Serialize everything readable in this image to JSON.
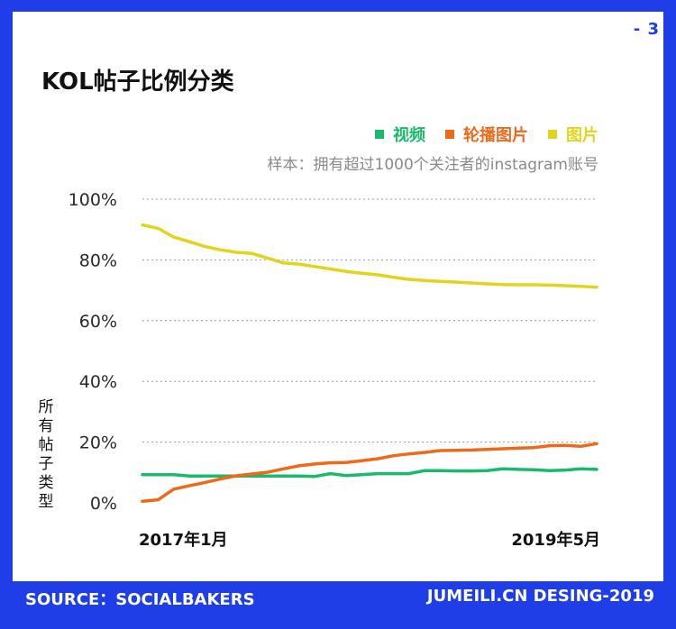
{
  "page_number": "- 3",
  "footer": {
    "source": "SOURCE：SOCIALBAKERS",
    "credit": "JUMEILI.CN DESING-2019"
  },
  "colors": {
    "frame": "#1f3ee8",
    "video": "#1aba6c",
    "carousel": "#ee6a1a",
    "image": "#e2d41c",
    "grid": "#9a9a9a"
  },
  "chart_data": {
    "type": "line",
    "title": "KOL帖子比例分类",
    "subtitle": "样本：拥有超过1000个关注者的instagram账号",
    "ylabel": "所有帖子类型",
    "xlabel": "",
    "x_tick_labels": [
      "2017年1月",
      "2019年5月"
    ],
    "y_ticks": [
      "0%",
      "20%",
      "40%",
      "60%",
      "80%",
      "100%"
    ],
    "ylim": [
      0,
      100
    ],
    "grid": true,
    "legend_position": "top-right",
    "x": [
      0,
      1,
      2,
      3,
      4,
      5,
      6,
      7,
      8,
      9,
      10,
      11,
      12,
      13,
      14,
      15,
      16,
      17,
      18,
      19,
      20,
      21,
      22,
      23,
      24,
      25,
      26,
      27,
      28,
      29
    ],
    "series": [
      {
        "name": "视频",
        "color_key": "video",
        "values": [
          9.3,
          9.3,
          9.3,
          8.8,
          8.8,
          8.8,
          8.8,
          8.8,
          8.8,
          8.8,
          8.8,
          8.7,
          9.6,
          9.0,
          9.3,
          9.6,
          9.6,
          9.6,
          10.6,
          10.6,
          10.5,
          10.5,
          10.6,
          11.2,
          11.0,
          10.9,
          10.6,
          10.8,
          11.2,
          11.0
        ]
      },
      {
        "name": "轮播图片",
        "color_key": "carousel",
        "values": [
          0.5,
          1.0,
          4.5,
          5.6,
          6.7,
          7.9,
          8.9,
          9.5,
          10.1,
          11.2,
          12.2,
          12.8,
          13.2,
          13.3,
          13.9,
          14.5,
          15.5,
          16.1,
          16.6,
          17.2,
          17.3,
          17.4,
          17.6,
          17.8,
          18.0,
          18.2,
          18.8,
          18.9,
          18.6,
          19.5
        ]
      },
      {
        "name": "图片",
        "color_key": "image",
        "values": [
          91.5,
          90.4,
          87.5,
          86.0,
          84.4,
          83.3,
          82.5,
          82.1,
          80.6,
          79.0,
          78.6,
          77.8,
          77.0,
          76.2,
          75.6,
          75.1,
          74.3,
          73.6,
          73.2,
          72.9,
          72.7,
          72.4,
          72.1,
          71.9,
          71.8,
          71.8,
          71.7,
          71.5,
          71.3,
          71.0
        ]
      }
    ]
  }
}
